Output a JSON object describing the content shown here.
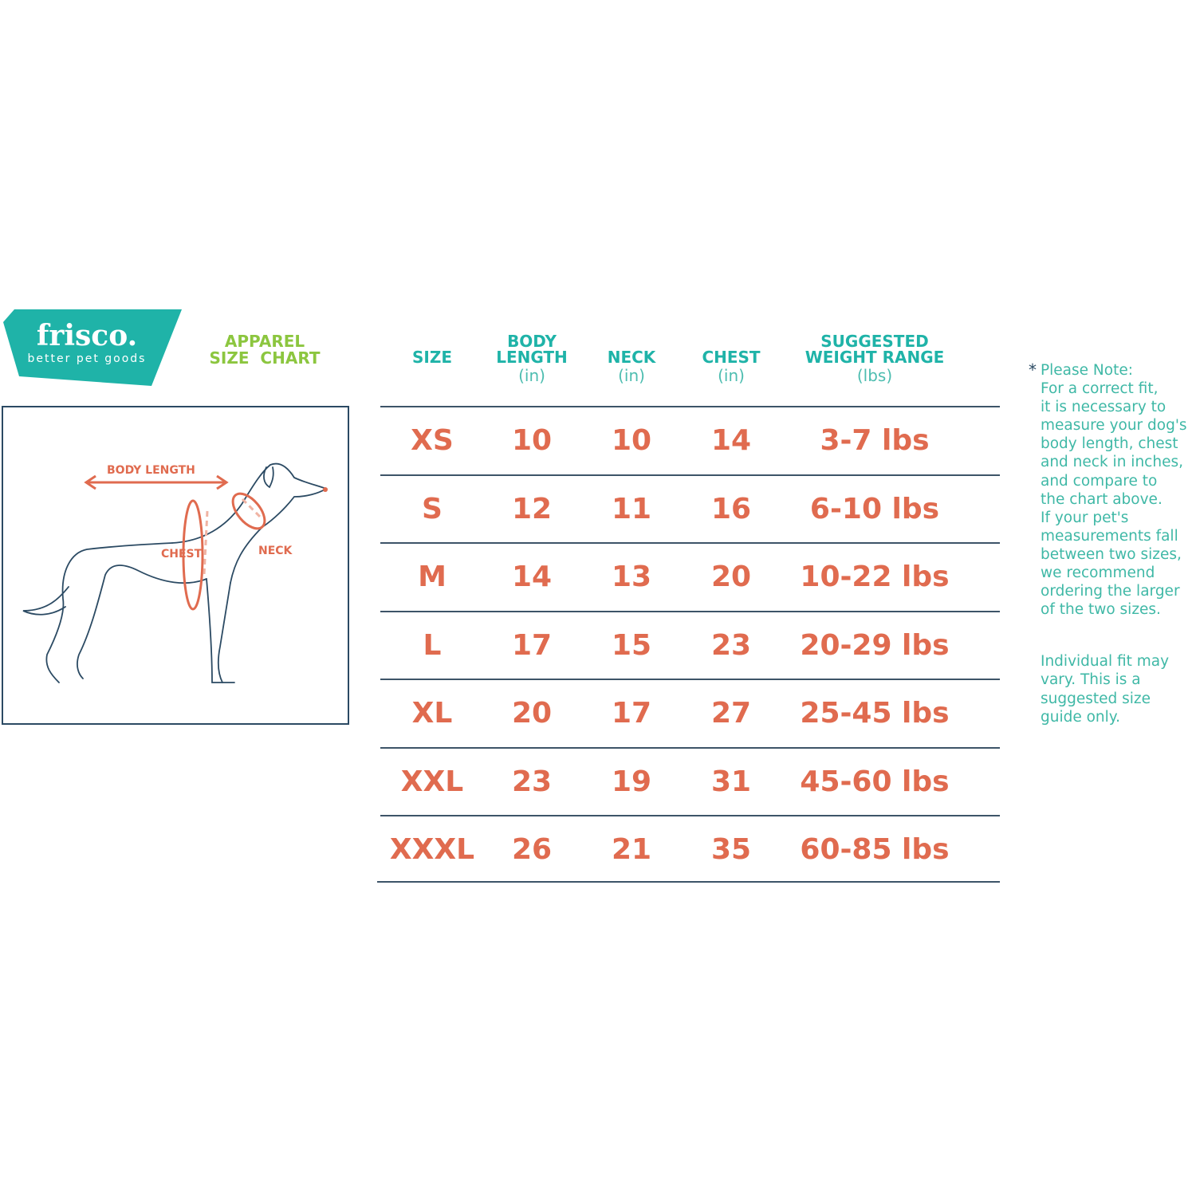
{
  "brand": {
    "name": "frisco.",
    "tagline": "better pet goods",
    "color": "#1fb3a8"
  },
  "title": {
    "line1": "APPAREL",
    "line2": "SIZE  CHART",
    "color": "#8cc63f"
  },
  "diagram": {
    "labels": {
      "body_length": "BODY LENGTH",
      "chest": "CHEST",
      "neck": "NECK"
    },
    "accent": "#e06b4f"
  },
  "table": {
    "headers": [
      {
        "title": "SIZE",
        "unit": ""
      },
      {
        "title": "BODY\nLENGTH",
        "unit": "(in)"
      },
      {
        "title": "NECK",
        "unit": "(in)"
      },
      {
        "title": "CHEST",
        "unit": "(in)"
      },
      {
        "title": "SUGGESTED\nWEIGHT RANGE",
        "unit": "(lbs)"
      }
    ],
    "rows": [
      [
        "XS",
        "10",
        "10",
        "14",
        "3-7 lbs"
      ],
      [
        "S",
        "12",
        "11",
        "16",
        "6-10 lbs"
      ],
      [
        "M",
        "14",
        "13",
        "20",
        "10-22 lbs"
      ],
      [
        "L",
        "17",
        "15",
        "23",
        "20-29 lbs"
      ],
      [
        "XL",
        "20",
        "17",
        "27",
        "25-45 lbs"
      ],
      [
        "XXL",
        "23",
        "19",
        "31",
        "45-60 lbs"
      ],
      [
        "XXXL",
        "26",
        "21",
        "35",
        "60-85 lbs"
      ]
    ],
    "header_color": "#1fb3a8",
    "value_color": "#e06b4f"
  },
  "note": {
    "star": "*",
    "paragraph1": "Please Note:\nFor a correct fit,\nit is necessary to\nmeasure your dog's\nbody length, chest\nand neck in inches,\nand compare to\nthe chart above.\nIf your pet's\nmeasurements fall\nbetween two sizes,\nwe recommend\nordering the larger\nof the two sizes.",
    "paragraph2": "Individual fit may\nvary. This is a\nsuggested size\nguide only."
  }
}
